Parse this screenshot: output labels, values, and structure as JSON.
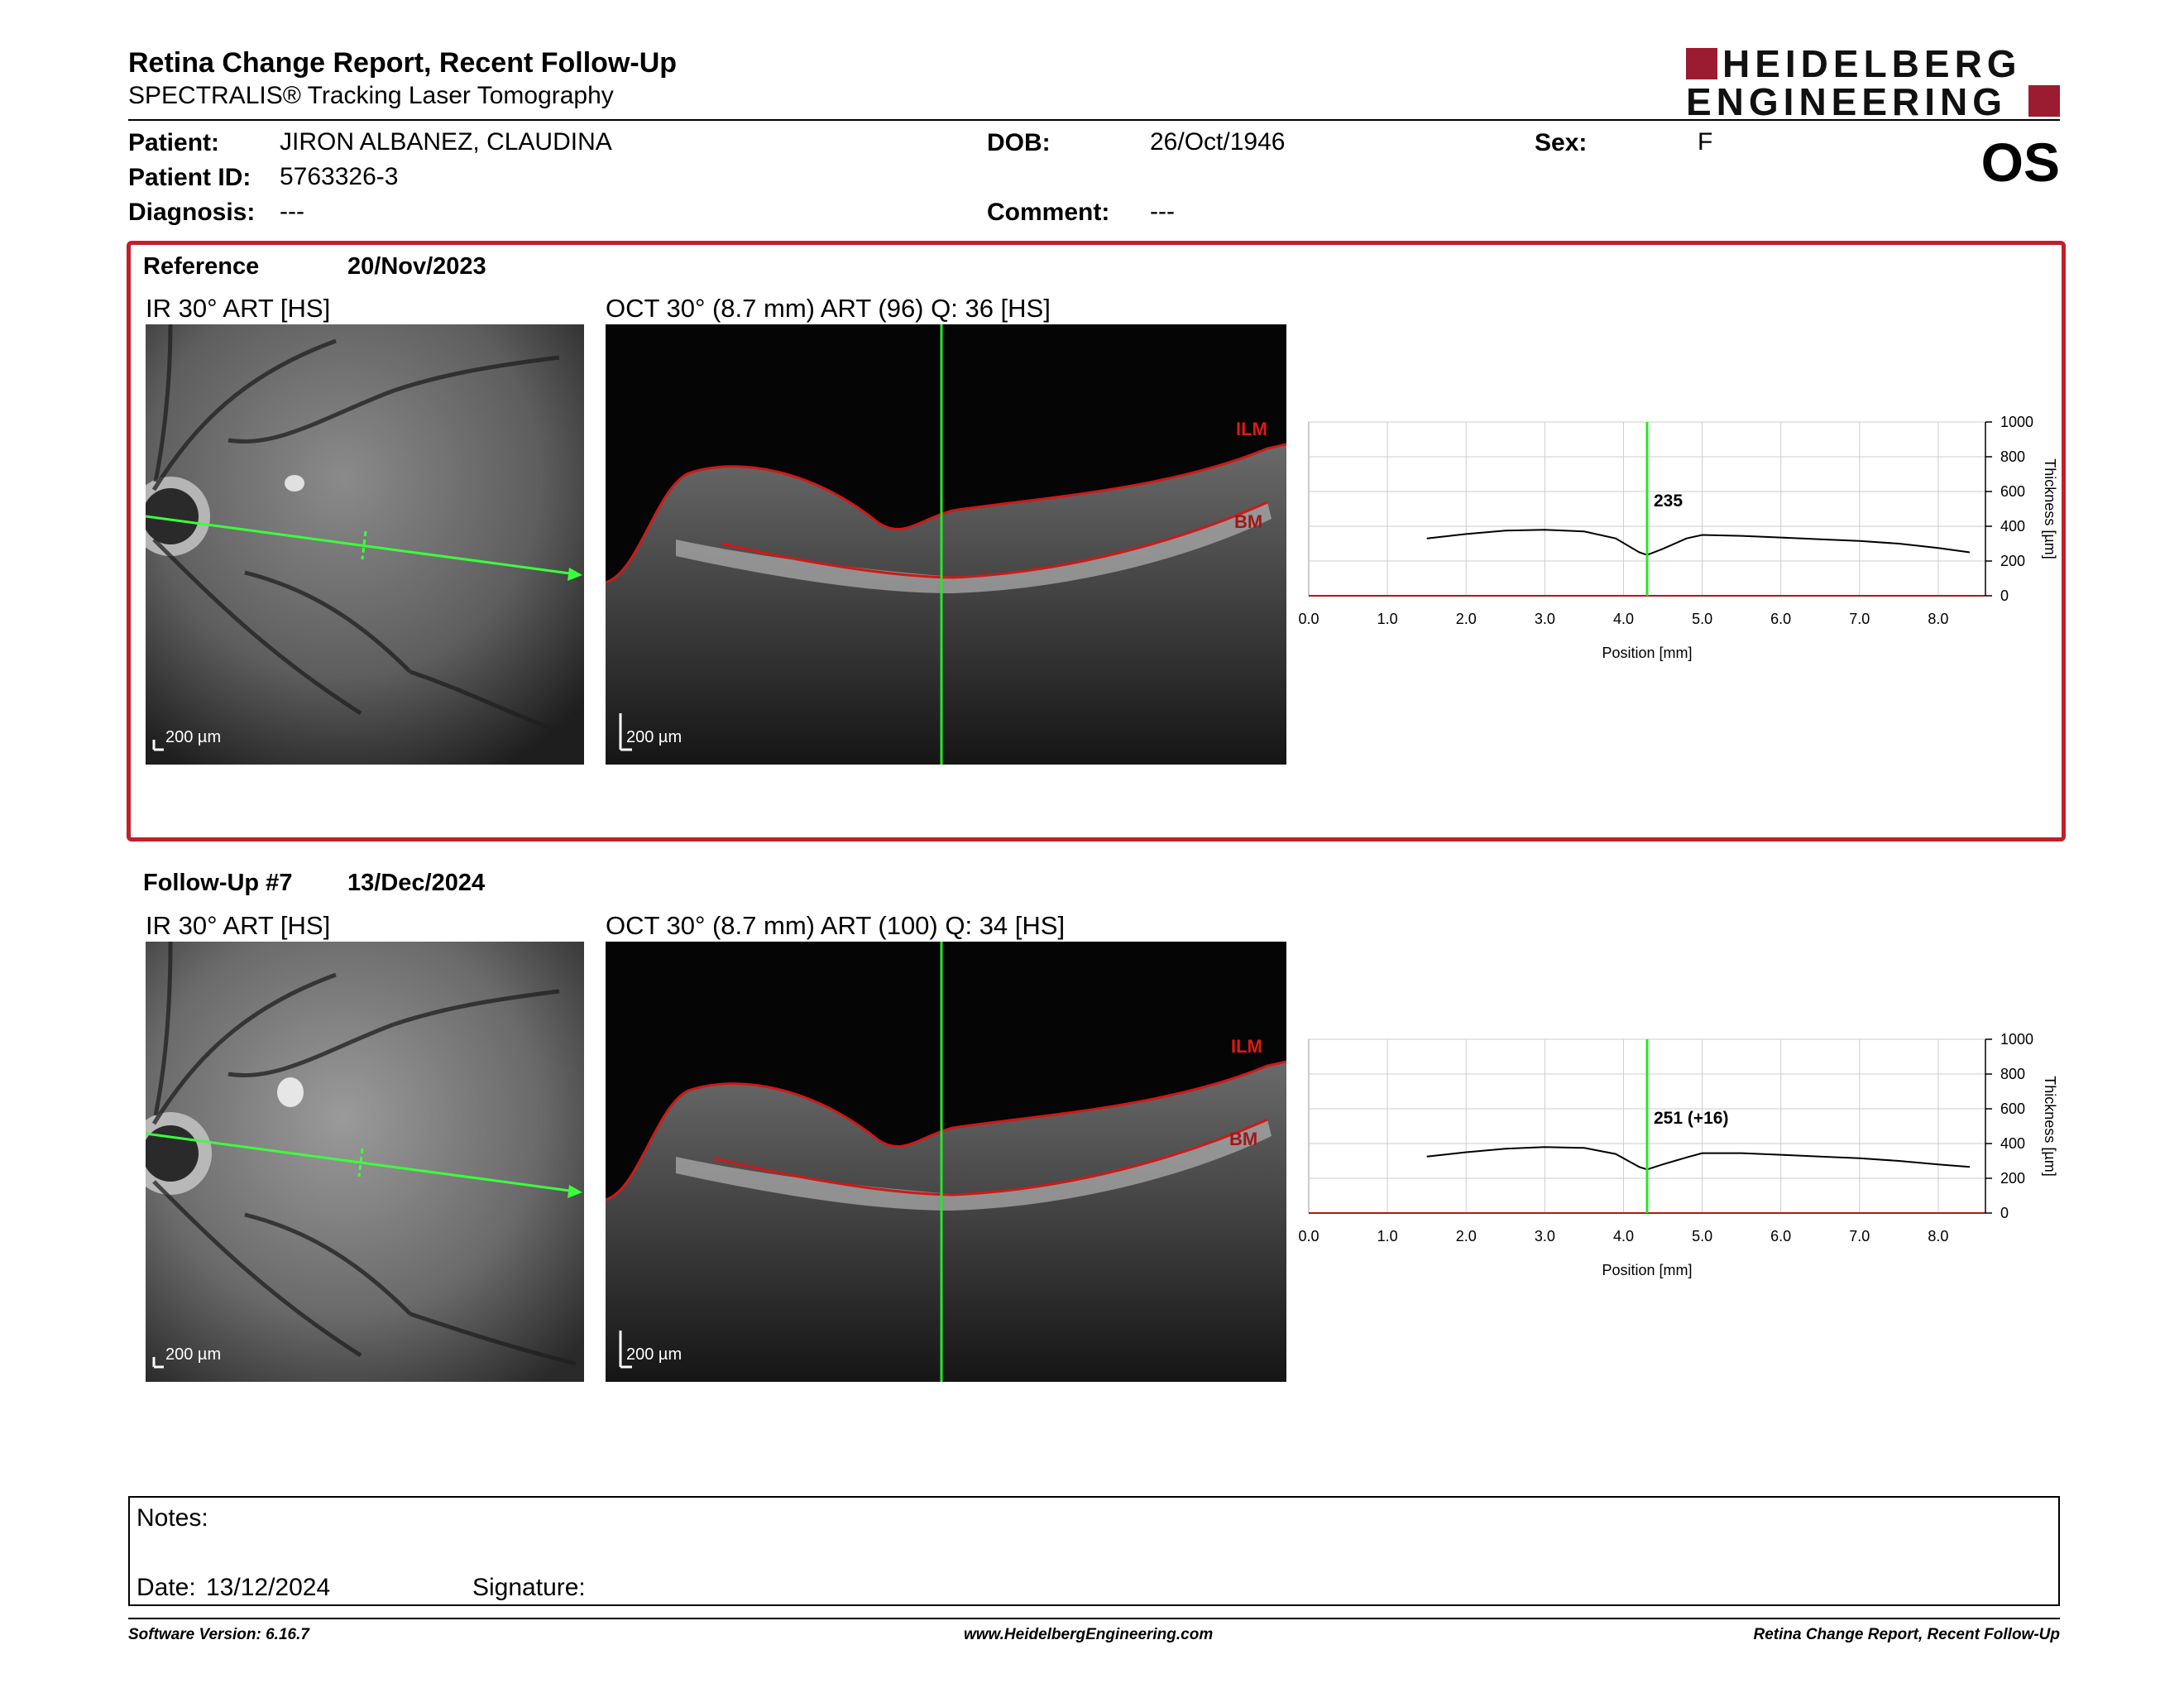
{
  "header": {
    "title": "Retina Change Report, Recent Follow-Up",
    "subtitle": "SPECTRALIS® Tracking Laser Tomography",
    "logo_line1": "HEIDELBERG",
    "logo_line2": "ENGINEERING",
    "eye": "OS"
  },
  "patient": {
    "name_label": "Patient:",
    "name": "JIRON ALBANEZ, CLAUDINA",
    "id_label": "Patient ID:",
    "id": "5763326-3",
    "diagnosis_label": "Diagnosis:",
    "diagnosis": "---",
    "dob_label": "DOB:",
    "dob": "26/Oct/1946",
    "comment_label": "Comment:",
    "comment": "---",
    "sex_label": "Sex:",
    "sex": "F"
  },
  "reference": {
    "label": "Reference",
    "date": "20/Nov/2023",
    "ir_label": "IR 30° ART [HS]",
    "oct_label": "OCT 30° (8.7 mm) ART (96) Q: 36 [HS]",
    "scale": "200 µm",
    "ilm": "ILM",
    "bm": "BM"
  },
  "followup": {
    "label": "Follow-Up #7",
    "date": "13/Dec/2024",
    "ir_label": "IR 30° ART [HS]",
    "oct_label": "OCT 30° (8.7 mm) ART (100) Q: 34 [HS]",
    "scale": "200 µm",
    "ilm": "ILM",
    "bm": "BM"
  },
  "chart_data": [
    {
      "type": "line",
      "xlabel": "Position [mm]",
      "ylabel": "Thickness [µm]",
      "xlim": [
        0,
        8.6
      ],
      "ylim": [
        0,
        1000
      ],
      "xticks": [
        "0.0",
        "1.0",
        "2.0",
        "3.0",
        "4.0",
        "5.0",
        "6.0",
        "7.0",
        "8.0"
      ],
      "yticks": [
        "0",
        "200",
        "400",
        "600",
        "800",
        "1000"
      ],
      "marker_x": 4.3,
      "marker_label": "235",
      "grid": true,
      "series": [
        {
          "x": [
            1.5,
            2.0,
            2.5,
            3.0,
            3.5,
            3.9,
            4.2,
            4.3,
            4.5,
            4.8,
            5.0,
            5.5,
            6.0,
            6.5,
            7.0,
            7.5,
            8.0,
            8.4
          ],
          "values": [
            330,
            355,
            375,
            380,
            370,
            330,
            250,
            235,
            270,
            330,
            350,
            345,
            335,
            325,
            315,
            300,
            275,
            250
          ]
        }
      ]
    },
    {
      "type": "line",
      "xlabel": "Position [mm]",
      "ylabel": "Thickness [µm]",
      "xlim": [
        0,
        8.6
      ],
      "ylim": [
        0,
        1000
      ],
      "xticks": [
        "0.0",
        "1.0",
        "2.0",
        "3.0",
        "4.0",
        "5.0",
        "6.0",
        "7.0",
        "8.0"
      ],
      "yticks": [
        "0",
        "200",
        "400",
        "600",
        "800",
        "1000"
      ],
      "marker_x": 4.3,
      "marker_label": "251 (+16)",
      "grid": true,
      "series": [
        {
          "x": [
            1.5,
            2.0,
            2.5,
            3.0,
            3.5,
            3.9,
            4.2,
            4.3,
            4.5,
            4.8,
            5.0,
            5.5,
            6.0,
            6.5,
            7.0,
            7.5,
            8.0,
            8.4
          ],
          "values": [
            325,
            350,
            370,
            380,
            375,
            340,
            265,
            251,
            280,
            320,
            345,
            345,
            335,
            325,
            315,
            300,
            280,
            265
          ]
        }
      ]
    }
  ],
  "notes": {
    "notes_label": "Notes:",
    "date_label": "Date:",
    "date": "13/12/2024",
    "signature_label": "Signature:"
  },
  "footer": {
    "version": "Software Version: 6.16.7",
    "website": "www.HeidelbergEngineering.com",
    "report": "Retina Change Report, Recent Follow-Up"
  }
}
